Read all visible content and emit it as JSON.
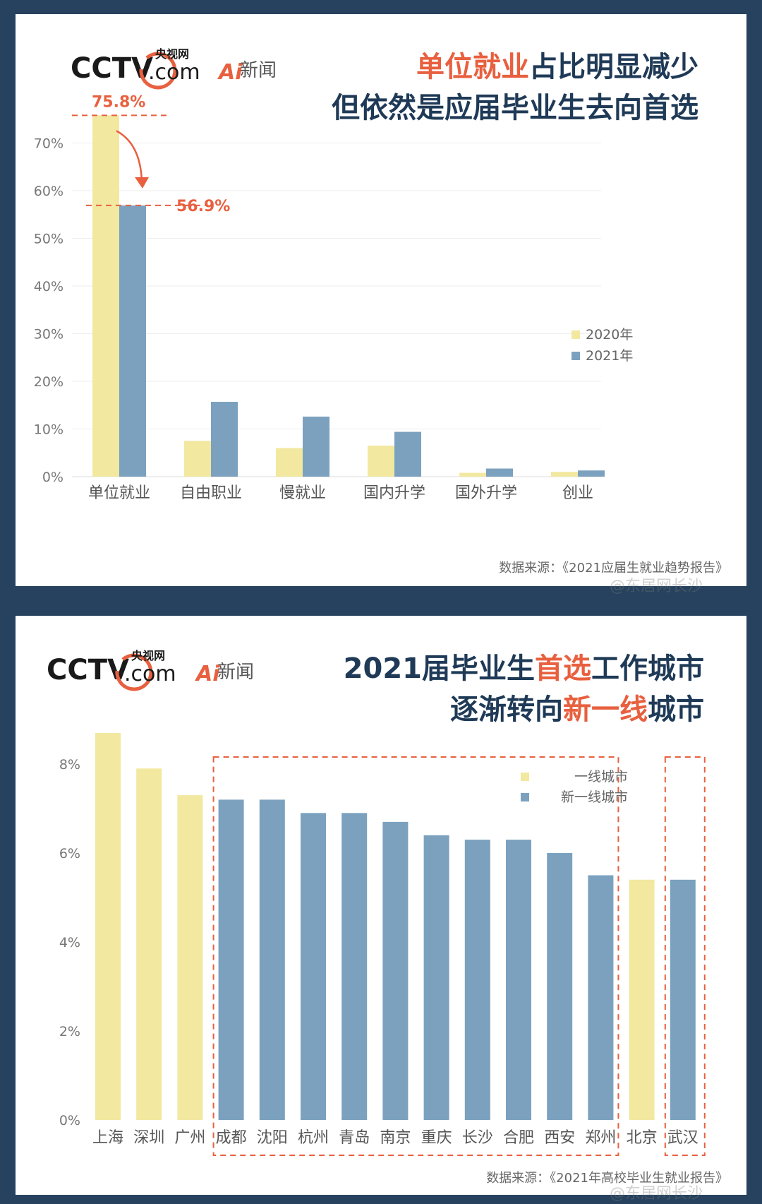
{
  "colors": {
    "yellow": "#f2e8a0",
    "blue": "#7ba1bf",
    "red": "#e8603f",
    "dark": "#1f3a57",
    "grid": "#eeeeee"
  },
  "branding": {
    "cctv": "CCTV",
    "dotcom": ".com",
    "yangshiwang": "央视网",
    "ai": "Ai",
    "xinwen": "新闻"
  },
  "chart1": {
    "title_line1_red": "单位就业",
    "title_line1_dark": "占比明显减少",
    "title_line2": "但依然是应届毕业生去向首选",
    "source": "数据来源：《2021应届生就业趋势报告》",
    "watermark": "@东居网长沙",
    "annotation_2020": "75.8%",
    "annotation_2021": "56.9%"
  },
  "chart2": {
    "title_line1_dark_a": "2021届毕业生",
    "title_line1_red": "首选",
    "title_line1_dark_b": "工作城市",
    "title_line2_dark_a": "逐渐转向",
    "title_line2_red": "新一线",
    "title_line2_dark_b": "城市",
    "source": "数据来源：《2021年高校毕业生就业报告》",
    "watermark": "@东居网长沙"
  },
  "chart_data": [
    {
      "type": "bar",
      "categories": [
        "单位就业",
        "自由职业",
        "慢就业",
        "国内升学",
        "国外升学",
        "创业"
      ],
      "series": [
        {
          "name": "2020年",
          "values": [
            75.8,
            7.5,
            6.0,
            6.5,
            0.8,
            1.0
          ]
        },
        {
          "name": "2021年",
          "values": [
            56.9,
            15.7,
            12.6,
            9.4,
            1.7,
            1.3
          ]
        }
      ],
      "yticks": [
        "0%",
        "10%",
        "20%",
        "30%",
        "40%",
        "50%",
        "60%",
        "70%"
      ],
      "ylim": [
        0,
        80
      ],
      "legend_position": "right",
      "grid": true
    },
    {
      "type": "bar",
      "categories": [
        "上海",
        "深圳",
        "广州",
        "成都",
        "沈阳",
        "杭州",
        "青岛",
        "南京",
        "重庆",
        "长沙",
        "合肥",
        "西安",
        "郑州",
        "北京",
        "武汉"
      ],
      "values": [
        8.7,
        7.9,
        7.3,
        7.2,
        7.2,
        6.9,
        6.9,
        6.7,
        6.4,
        6.3,
        6.3,
        6.0,
        5.5,
        5.4,
        5.4
      ],
      "groups": [
        "一线城市",
        "一线城市",
        "一线城市",
        "新一线城市",
        "新一线城市",
        "新一线城市",
        "新一线城市",
        "新一线城市",
        "新一线城市",
        "新一线城市",
        "新一线城市",
        "新一线城市",
        "新一线城市",
        "一线城市",
        "新一线城市"
      ],
      "legend": [
        "一线城市",
        "新一线城市"
      ],
      "yticks": [
        "0%",
        "2%",
        "4%",
        "6%",
        "8%"
      ],
      "ylim": [
        0,
        9
      ],
      "legend_position": "top-right",
      "grid": false
    }
  ]
}
